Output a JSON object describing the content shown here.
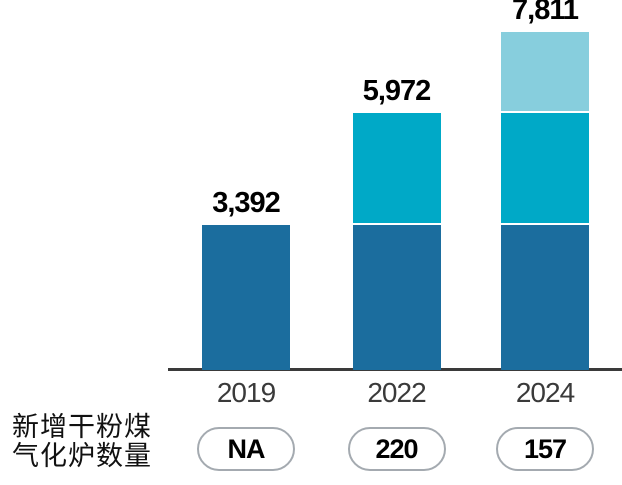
{
  "chart_data": {
    "type": "bar",
    "stacked": true,
    "title": "",
    "xlabel": "",
    "ylabel": "",
    "grid": false,
    "legend": "none",
    "ylim": [
      0,
      7811
    ],
    "categories": [
      "2019",
      "2022",
      "2024"
    ],
    "totals": [
      3392,
      5972,
      7811
    ],
    "total_labels": [
      "3,392",
      "5,972",
      "7,811"
    ],
    "segments": [
      [
        3392
      ],
      [
        3392,
        2580
      ],
      [
        3392,
        2580,
        1839
      ]
    ],
    "segment_colors": [
      "#1b6d9e",
      "#00a9c7",
      "#87cedd"
    ],
    "annotation_row": {
      "label_line1": "新增干粉煤",
      "label_line2": "气化炉数量",
      "values": [
        "NA",
        "220",
        "157"
      ]
    }
  },
  "colors": {
    "bar_dark_blue": "#1b6d9e",
    "bar_cyan": "#00a9c7",
    "bar_light_cyan": "#87cedd",
    "axis_line": "#3a3a3a",
    "pill_border": "#a4aab0",
    "value_text": "#000000",
    "year_text": "#3a3a3a"
  }
}
